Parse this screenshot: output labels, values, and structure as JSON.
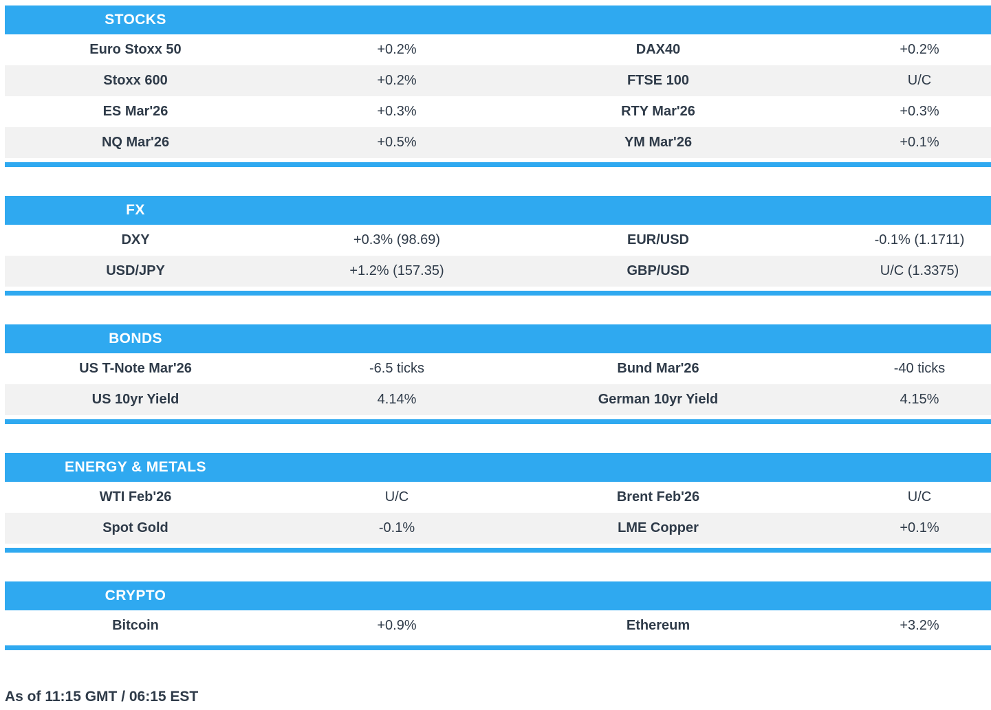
{
  "theme": {
    "accent_blue": "#2FA9F0",
    "row_alt_gray": "#F2F2F2",
    "text_dark": "#2F3B49",
    "header_text": "#FFFFFF"
  },
  "sections": [
    {
      "slug": "stocks",
      "title": "STOCKS",
      "rows": [
        [
          "Euro Stoxx 50",
          "+0.2%",
          "DAX40",
          "+0.2%"
        ],
        [
          "Stoxx 600",
          "+0.2%",
          "FTSE 100",
          "U/C"
        ],
        [
          "ES Mar'26",
          "+0.3%",
          "RTY Mar'26",
          "+0.3%"
        ],
        [
          "NQ Mar'26",
          "+0.5%",
          "YM Mar'26",
          "+0.1%"
        ]
      ]
    },
    {
      "slug": "fx",
      "title": "FX",
      "rows": [
        [
          "DXY",
          "+0.3% (98.69)",
          "EUR/USD",
          "-0.1% (1.1711)"
        ],
        [
          "USD/JPY",
          "+1.2% (157.35)",
          "GBP/USD",
          "U/C (1.3375)"
        ]
      ]
    },
    {
      "slug": "bonds",
      "title": "BONDS",
      "rows": [
        [
          "US T-Note Mar'26",
          "-6.5 ticks",
          "Bund Mar'26",
          "-40 ticks"
        ],
        [
          "US 10yr Yield",
          "4.14%",
          "German 10yr Yield",
          "4.15%"
        ]
      ]
    },
    {
      "slug": "energy-metals",
      "title": "ENERGY & METALS",
      "rows": [
        [
          "WTI Feb'26",
          "U/C",
          "Brent Feb'26",
          "U/C"
        ],
        [
          "Spot Gold",
          "-0.1%",
          "LME Copper",
          "+0.1%"
        ]
      ]
    },
    {
      "slug": "crypto",
      "title": "CRYPTO",
      "rows": [
        [
          "Bitcoin",
          "+0.9%",
          "Ethereum",
          "+3.2%"
        ]
      ]
    }
  ],
  "footer": {
    "as_of": "As of 11:15 GMT / 06:15 EST"
  }
}
